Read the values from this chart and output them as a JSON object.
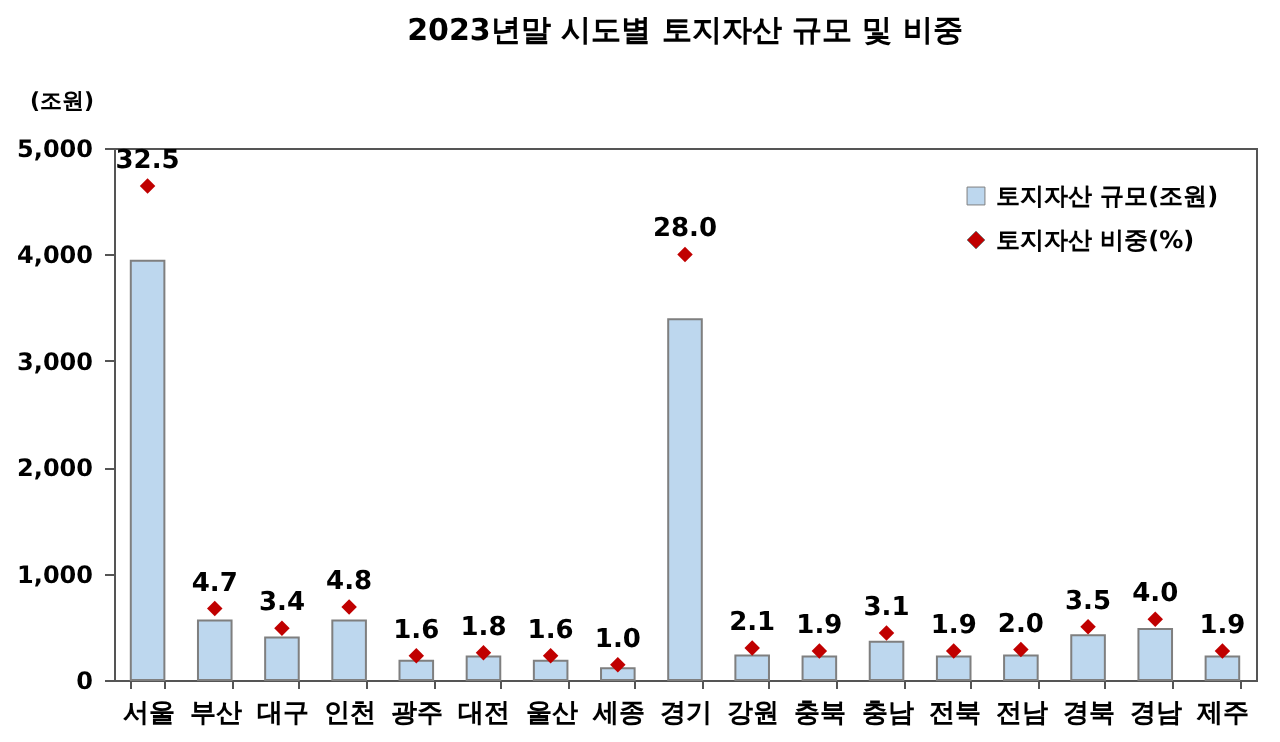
{
  "chart_data": {
    "type": "bar",
    "title": "2023년말 시도별 토지자산 규모 및 비중",
    "ylabel": "(조원)",
    "categories": [
      "서울",
      "부산",
      "대구",
      "인천",
      "광주",
      "대전",
      "울산",
      "세종",
      "경기",
      "강원",
      "충북",
      "충남",
      "전북",
      "전남",
      "경북",
      "경남",
      "제주"
    ],
    "series": [
      {
        "name": "토지자산 규모(조원)",
        "color": "#bdd7ee",
        "values": [
          3940,
          560,
          400,
          560,
          180,
          220,
          180,
          110,
          3390,
          230,
          220,
          360,
          220,
          230,
          420,
          480,
          220
        ]
      },
      {
        "name": "토지자산 비중(%)",
        "type": "scatter",
        "axis": "y2",
        "marker": "diamond",
        "color": "#c00000",
        "values": [
          32.5,
          4.7,
          3.4,
          4.8,
          1.6,
          1.8,
          1.6,
          1.0,
          28.0,
          2.1,
          1.9,
          3.1,
          1.9,
          2.0,
          3.5,
          4.0,
          1.9
        ],
        "value_labels": [
          "32.5",
          "4.7",
          "3.4",
          "4.8",
          "1.6",
          "1.8",
          "1.6",
          "1.0",
          "28.0",
          "2.1",
          "1.9",
          "3.1",
          "1.9",
          "2.0",
          "3.5",
          "4.0",
          "1.9"
        ]
      }
    ],
    "ylim": [
      0,
      5000
    ],
    "yticks": [
      {
        "value": 0,
        "label": "0"
      },
      {
        "value": 1000,
        "label": "1,000"
      },
      {
        "value": 2000,
        "label": "2,000"
      },
      {
        "value": 3000,
        "label": "3,000"
      },
      {
        "value": 4000,
        "label": "4,000"
      },
      {
        "value": 5000,
        "label": "5,000"
      }
    ],
    "grid": false,
    "legend": "top right"
  }
}
